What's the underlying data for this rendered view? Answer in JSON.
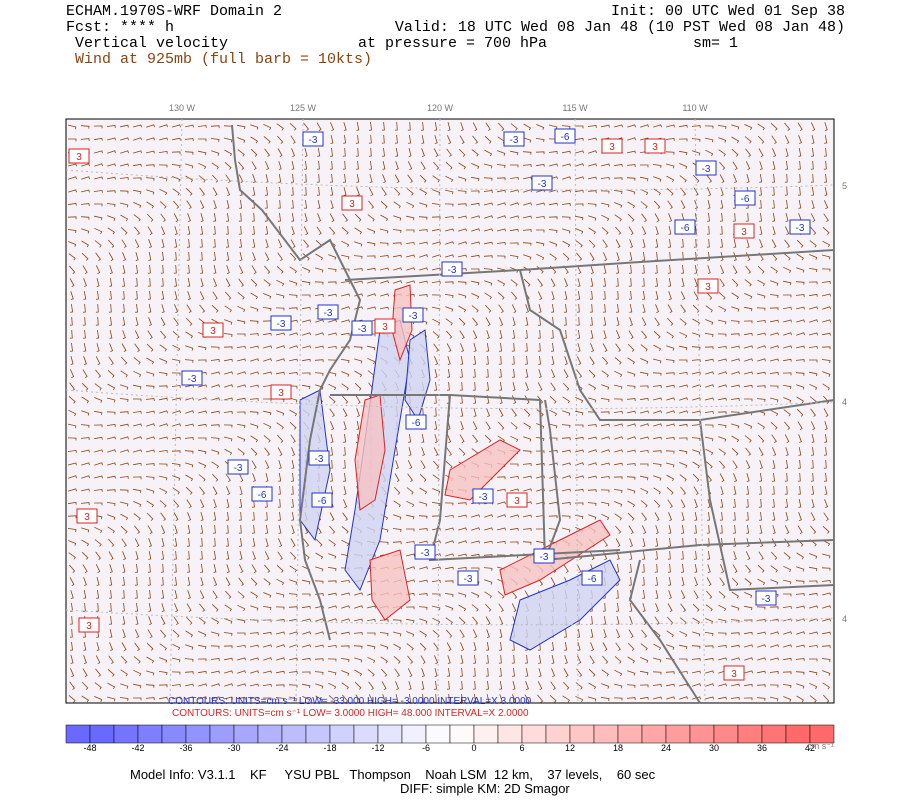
{
  "header": {
    "model": "ECHAM.1970S-WRF Domain 2",
    "forecast": "Fcst: **** h",
    "field": "Vertical velocity",
    "wind": "Wind at 925mb (full barb = 10kts)",
    "init": "Init: 00 UTC Wed 01 Sep 38",
    "valid": "Valid: 18 UTC Wed 08 Jan 48 (10 PST Wed 08 Jan 48)",
    "pressure": "at pressure =  700 hPa",
    "smoothing": "sm= 1"
  },
  "longitude_labels": [
    "130 W",
    "125 W",
    "120 W",
    "115 W",
    "110 W"
  ],
  "latitude_labels": [
    "5",
    "4",
    "4"
  ],
  "contour_labels": [
    "3",
    "-3",
    "-6",
    "3",
    "3",
    "-3",
    "-6",
    "-3",
    "3",
    "-3",
    "3",
    "-6",
    "3",
    "-3",
    "-3",
    "3",
    "-3",
    "-3",
    "-3",
    "3",
    "-3",
    "-3",
    "3",
    "-6",
    "-3",
    "-3",
    "3",
    "-6",
    "-6",
    "-3",
    "3",
    "-3",
    "-3",
    "-3",
    "-6",
    "3",
    "-3",
    "3"
  ],
  "contour_info": {
    "blue": "CONTOURS:  UNITS=cm s⁻¹   LOW= -33.000      HIGH= -3.0000      INTERVAL=X  3.0000",
    "red": "CONTOURS:  UNITS=cm s⁻¹   LOW=  3.0000      HIGH=  48.000      INTERVAL=X  2.0000"
  },
  "colorbar": {
    "labels": [
      "-48",
      "-42",
      "-36",
      "-30",
      "-24",
      "-18",
      "-12",
      "-6",
      "0",
      "6",
      "12",
      "18",
      "24",
      "30",
      "36",
      "42"
    ],
    "units": "cm s⁻¹"
  },
  "footer": {
    "model_info": "Model Info: V3.1.1    KF     YSU PBL   Thompson    Noah LSM  12 km,    37 levels,    60 sec",
    "diffusion": "DIFF: simple KM: 2D Smagor"
  }
}
